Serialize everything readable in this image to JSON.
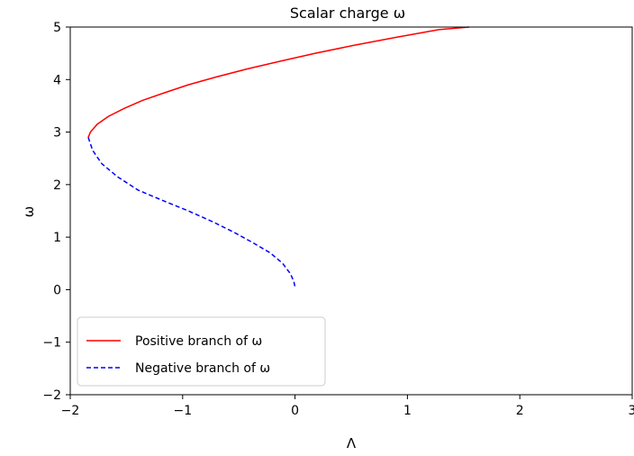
{
  "chart_data": {
    "type": "line",
    "title": "Scalar charge ω",
    "xlabel": "Λ",
    "ylabel": "ω",
    "xlim": [
      -2,
      3
    ],
    "ylim": [
      -2,
      5
    ],
    "xticks": [
      "−2",
      "−1",
      "0",
      "1",
      "2",
      "3"
    ],
    "yticks": [
      "−2",
      "−1",
      "0",
      "1",
      "2",
      "3",
      "4",
      "5"
    ],
    "xtick_values": [
      -2,
      -1,
      0,
      1,
      2,
      3
    ],
    "ytick_values": [
      -2,
      -1,
      0,
      1,
      2,
      3,
      4,
      5
    ],
    "grid": false,
    "legend_position": "lower-left",
    "series": [
      {
        "name": "Positive branch of ω",
        "color": "#ff0000",
        "style": "solid",
        "x": [
          -1.84,
          -1.82,
          -1.76,
          -1.66,
          -1.52,
          -1.36,
          -1.16,
          -0.95,
          -0.7,
          -0.43,
          -0.13,
          0.18,
          0.52,
          0.89,
          1.28,
          1.55
        ],
        "y": [
          2.9,
          3.0,
          3.15,
          3.3,
          3.45,
          3.6,
          3.75,
          3.9,
          4.05,
          4.2,
          4.35,
          4.5,
          4.65,
          4.8,
          4.95,
          5.0
        ]
      },
      {
        "name": "Negative branch of ω",
        "color": "#0000ff",
        "style": "dashed",
        "x": [
          -1.84,
          -1.8,
          -1.72,
          -1.58,
          -1.4,
          -1.18,
          -0.95,
          -0.74,
          -0.55,
          -0.38,
          -0.22,
          -0.11,
          -0.04,
          -0.01,
          0.0
        ],
        "y": [
          2.9,
          2.65,
          2.4,
          2.15,
          1.9,
          1.7,
          1.5,
          1.3,
          1.1,
          0.9,
          0.7,
          0.5,
          0.3,
          0.15,
          0.05
        ]
      }
    ]
  }
}
